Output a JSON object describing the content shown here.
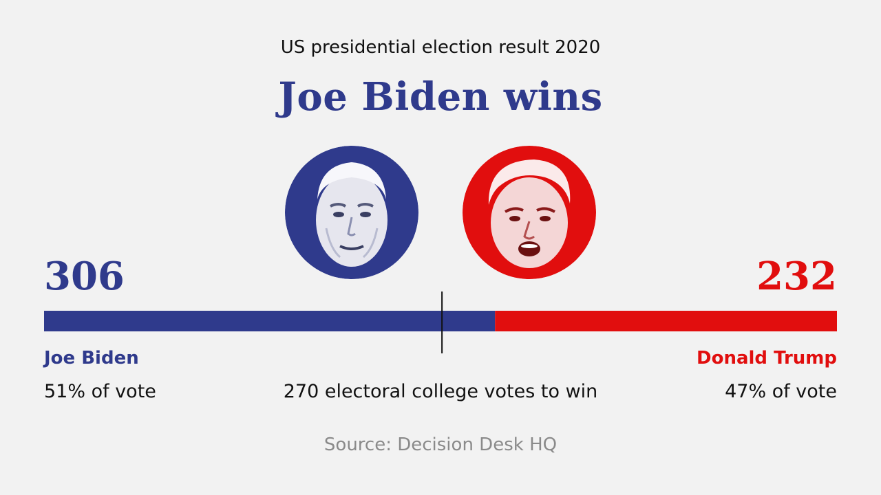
{
  "header": {
    "subtitle": "US presidential election result 2020",
    "title": "Joe Biden wins"
  },
  "colors": {
    "biden": "#2f3a8c",
    "trump": "#e10e0e",
    "background": "#f2f2f2"
  },
  "chart_data": {
    "type": "bar",
    "stacked": true,
    "orientation": "horizontal",
    "series": [
      {
        "name": "Joe Biden",
        "value": 306,
        "value_label": "306",
        "vote_share": "51% of vote",
        "color": "#2f3a8c"
      },
      {
        "name": "Donald Trump",
        "value": 232,
        "value_label": "232",
        "vote_share": "47% of vote",
        "color": "#e10e0e"
      }
    ],
    "total": 538,
    "threshold": {
      "value": 270,
      "label": "270 electoral college votes to win"
    }
  },
  "source": "Source: Decision Desk HQ"
}
